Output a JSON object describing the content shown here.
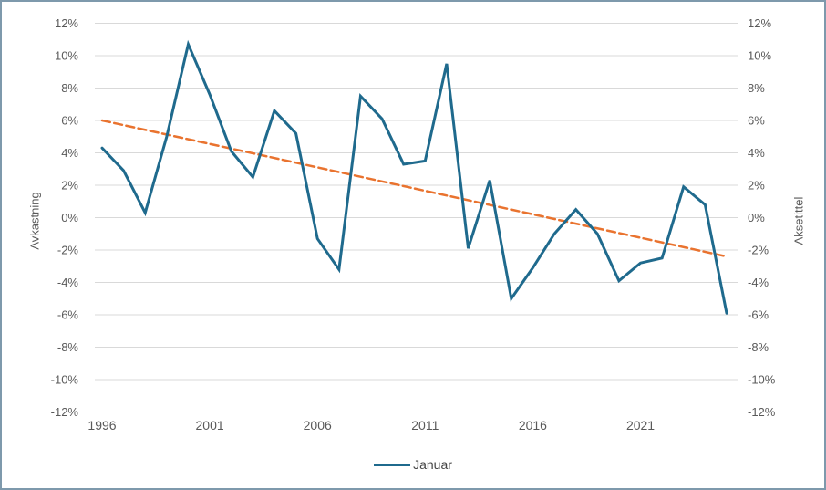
{
  "chart_data": {
    "type": "line",
    "title": "",
    "x_years": [
      1996,
      1997,
      1998,
      1999,
      2000,
      2001,
      2002,
      2003,
      2004,
      2005,
      2006,
      2007,
      2008,
      2009,
      2010,
      2011,
      2012,
      2013,
      2014,
      2015,
      2016,
      2017,
      2018,
      2019,
      2020,
      2021,
      2022,
      2023,
      2024,
      2025
    ],
    "series": [
      {
        "name": "Januar",
        "color": "#1F6A8D",
        "line_style": "solid",
        "unit": "percent",
        "values": [
          4.3,
          2.9,
          0.3,
          5.0,
          10.7,
          7.6,
          4.1,
          2.5,
          6.6,
          5.2,
          -1.3,
          -3.2,
          7.5,
          6.1,
          3.3,
          3.5,
          9.5,
          -1.9,
          2.3,
          -5.0,
          -3.1,
          -1.0,
          0.5,
          -1.0,
          -3.9,
          -2.8,
          -2.5,
          1.9,
          0.8,
          -5.9
        ]
      }
    ],
    "trendline": {
      "description": "linear trend, dashed",
      "start_year": 1996,
      "start_value": 6.0,
      "end_year": 2025,
      "end_value": -2.4,
      "color": "#E9732F",
      "line_style": "dashed"
    },
    "ylabel_left": "Avkastning",
    "ylabel_right": "Aksetittel",
    "ylim": [
      -12,
      12
    ],
    "ytick_step": 2,
    "ytick_suffix": "%",
    "xtick_labels": [
      "1996",
      "2001",
      "2006",
      "2011",
      "2016",
      "2021"
    ],
    "legend": {
      "position": "bottom-center",
      "entries": [
        {
          "label": "Januar",
          "color": "#1F6A8D"
        }
      ]
    },
    "grid": "horizontal",
    "colors": {
      "gridline": "#D9D9D9",
      "tick_text": "#595959",
      "frame_border": "#7E99AC"
    }
  }
}
